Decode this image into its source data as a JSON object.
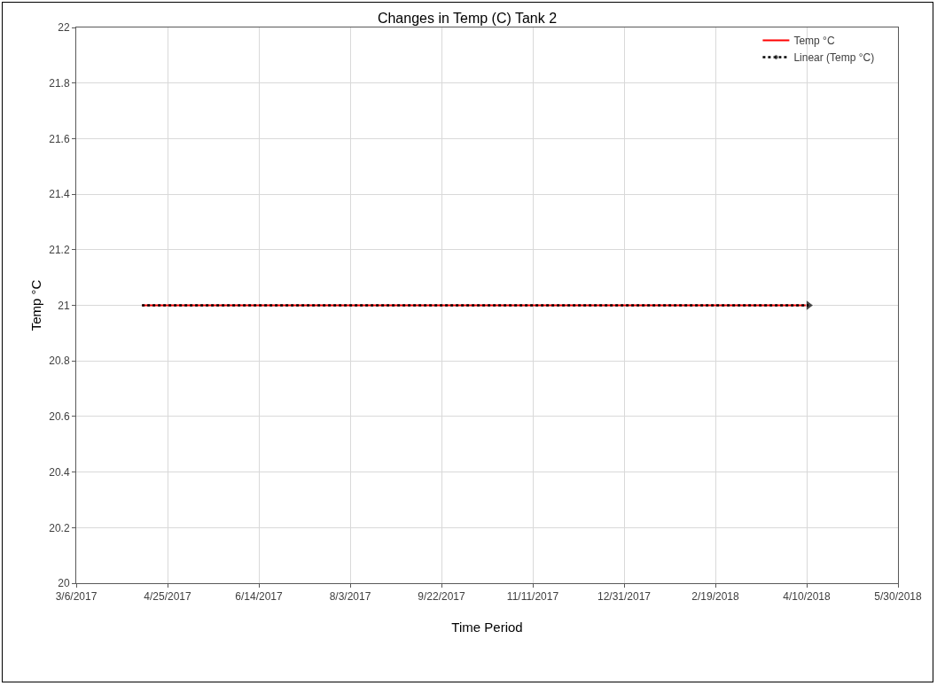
{
  "chart_data": {
    "type": "line",
    "title": "Changes in Temp (C) Tank 2",
    "xlabel": "Time Period",
    "ylabel": "Temp °C",
    "x": [
      "2017-04-11",
      "2018-04-11"
    ],
    "series": [
      {
        "name": "Temp °C",
        "color": "#ff0000",
        "values": [
          21,
          21
        ],
        "line_style": "solid"
      },
      {
        "name": "Linear (Temp °C)",
        "color": "#000000",
        "values": [
          21,
          21
        ],
        "line_style": "dotted",
        "marker": "triangle",
        "x": [
          "2017-04-11",
          "2018-04-11"
        ]
      }
    ],
    "xlim": [
      "2017-03-06",
      "2018-05-30"
    ],
    "xticks": [
      {
        "value": "2017-03-06",
        "label": "3/6/2017"
      },
      {
        "value": "2017-04-25",
        "label": "4/25/2017"
      },
      {
        "value": "2017-06-14",
        "label": "6/14/2017"
      },
      {
        "value": "2017-08-03",
        "label": "8/3/2017"
      },
      {
        "value": "2017-09-22",
        "label": "9/22/2017"
      },
      {
        "value": "2017-11-11",
        "label": "11/11/2017"
      },
      {
        "value": "2017-12-31",
        "label": "12/31/2017"
      },
      {
        "value": "2018-02-19",
        "label": "2/19/2018"
      },
      {
        "value": "2018-04-10",
        "label": "4/10/2018"
      },
      {
        "value": "2018-05-30",
        "label": "5/30/2018"
      }
    ],
    "ylim": [
      20,
      22
    ],
    "yticks": [
      20,
      20.2,
      20.4,
      20.6,
      20.8,
      21,
      21.2,
      21.4,
      21.6,
      21.8,
      22
    ],
    "grid": true,
    "legend": "top right",
    "marker": "none"
  }
}
